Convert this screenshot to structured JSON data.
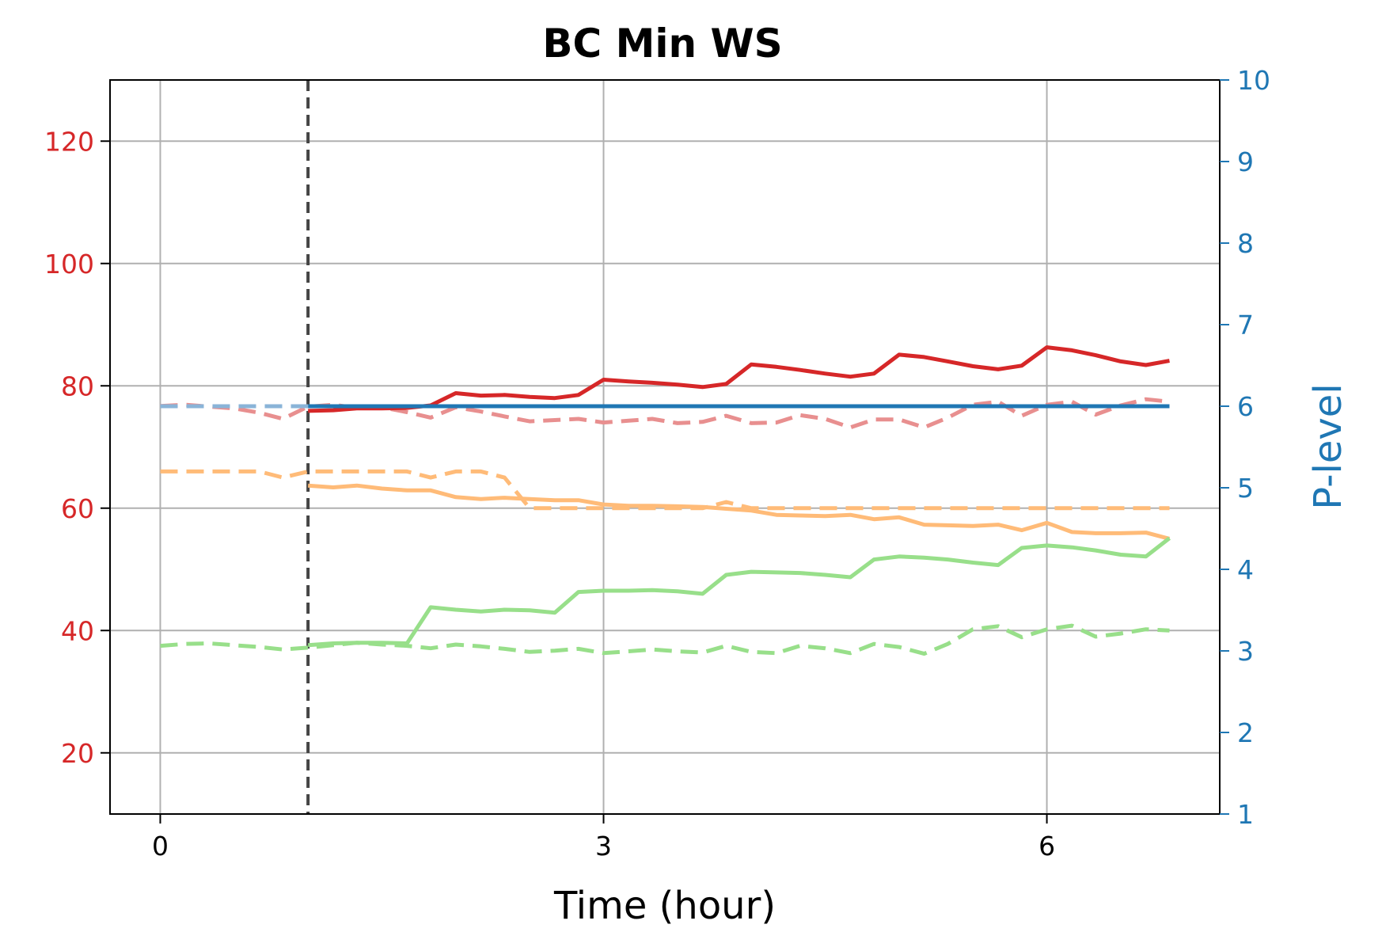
{
  "chart_data": {
    "type": "line",
    "title": "BC Min WS",
    "xlabel": "Time (hour)",
    "ylabel": "",
    "y2label": "P-level",
    "xlim": [
      -0.34,
      7.17
    ],
    "ylim": [
      10,
      130
    ],
    "y2lim": [
      1,
      10
    ],
    "xticks": [
      0,
      3,
      6
    ],
    "yticks": [
      20,
      40,
      60,
      80,
      100,
      120
    ],
    "y2ticks": [
      1,
      2,
      3,
      4,
      5,
      6,
      7,
      8,
      9,
      10
    ],
    "grid": true,
    "vline_x": 1.0,
    "colors": {
      "red": "#d62728",
      "orange": "#ffbb78",
      "green": "#98df8a",
      "blue": "#1f77b4",
      "vline": "#444444",
      "grid": "#b0b0b0",
      "left_tick": "#d62728",
      "right_tick": "#1f77b4"
    },
    "series": [
      {
        "axis": "left",
        "style": "dashed",
        "color": "#e88f8f",
        "x": [
          0,
          0.17,
          0.33,
          0.5,
          0.67,
          0.83,
          1.0,
          1.17,
          1.33,
          1.5,
          1.67,
          1.83,
          2.0,
          2.17,
          2.33,
          2.5,
          2.67,
          2.83,
          3.0,
          3.17,
          3.33,
          3.5,
          3.67,
          3.83,
          4.0,
          4.17,
          4.33,
          4.5,
          4.67,
          4.83,
          5.0,
          5.17,
          5.33,
          5.5,
          5.67,
          5.83,
          6.0,
          6.17,
          6.33,
          6.5,
          6.67,
          6.83
        ],
        "y": [
          76.7,
          76.9,
          76.6,
          76.3,
          75.6,
          74.6,
          76.6,
          76.9,
          76.4,
          76.5,
          75.7,
          74.8,
          76.5,
          75.8,
          75.0,
          74.2,
          74.4,
          74.6,
          74.0,
          74.3,
          74.6,
          73.9,
          74.1,
          75.1,
          73.9,
          74.0,
          75.2,
          74.6,
          73.2,
          74.5,
          74.5,
          73.2,
          74.8,
          76.9,
          77.4,
          75.1,
          76.9,
          77.4,
          75.3,
          76.8,
          77.8,
          77.4
        ]
      },
      {
        "axis": "left",
        "style": "solid",
        "color": "#d62728",
        "x": [
          1.0,
          1.17,
          1.33,
          1.5,
          1.67,
          1.83,
          2.0,
          2.17,
          2.33,
          2.5,
          2.67,
          2.83,
          3.0,
          3.17,
          3.33,
          3.5,
          3.67,
          3.83,
          4.0,
          4.17,
          4.33,
          4.5,
          4.67,
          4.83,
          5.0,
          5.17,
          5.33,
          5.5,
          5.67,
          5.83,
          6.0,
          6.17,
          6.33,
          6.5,
          6.67,
          6.83
        ],
        "y": [
          75.9,
          76.0,
          76.3,
          76.3,
          76.4,
          76.8,
          78.8,
          78.4,
          78.5,
          78.2,
          78.0,
          78.5,
          81.0,
          80.7,
          80.5,
          80.2,
          79.8,
          80.3,
          83.5,
          83.1,
          82.6,
          82.0,
          81.5,
          82.0,
          85.1,
          84.7,
          84.0,
          83.2,
          82.7,
          83.3,
          86.3,
          85.8,
          85.0,
          84.0,
          83.4,
          84.1
        ]
      },
      {
        "axis": "left",
        "style": "dashed",
        "color": "#ffbb78",
        "x": [
          0,
          0.17,
          0.33,
          0.5,
          0.67,
          0.83,
          1.0,
          1.17,
          1.33,
          1.5,
          1.67,
          1.83,
          2.0,
          2.17,
          2.33,
          2.5,
          2.67,
          2.83,
          3.0,
          3.17,
          3.33,
          3.5,
          3.67,
          3.83,
          4.0,
          4.17,
          4.33,
          4.5,
          4.67,
          4.83,
          5.0,
          5.17,
          5.33,
          5.5,
          5.67,
          5.83,
          6.0,
          6.17,
          6.33,
          6.5,
          6.67,
          6.83
        ],
        "y": [
          66.0,
          66.0,
          66.0,
          66.0,
          66.0,
          65.0,
          66.0,
          66.0,
          66.0,
          66.0,
          66.0,
          65.0,
          66.0,
          66.0,
          65.0,
          60.0,
          60.0,
          60.0,
          60.0,
          60.0,
          60.0,
          60.0,
          60.0,
          61.0,
          60.0,
          60.0,
          60.0,
          60.0,
          60.0,
          60.0,
          60.0,
          60.0,
          60.0,
          60.0,
          60.0,
          60.0,
          60.0,
          60.0,
          60.0,
          60.0,
          60.0,
          60.0
        ]
      },
      {
        "axis": "left",
        "style": "solid",
        "color": "#ffbb78",
        "x": [
          1.0,
          1.17,
          1.33,
          1.5,
          1.67,
          1.83,
          2.0,
          2.17,
          2.33,
          2.5,
          2.67,
          2.83,
          3.0,
          3.17,
          3.33,
          3.5,
          3.67,
          3.83,
          4.0,
          4.17,
          4.33,
          4.5,
          4.67,
          4.83,
          5.0,
          5.17,
          5.33,
          5.5,
          5.67,
          5.83,
          6.0,
          6.17,
          6.33,
          6.5,
          6.67,
          6.83
        ],
        "y": [
          63.7,
          63.4,
          63.7,
          63.2,
          62.9,
          62.9,
          61.8,
          61.5,
          61.7,
          61.5,
          61.3,
          61.3,
          60.6,
          60.4,
          60.4,
          60.3,
          60.2,
          59.9,
          59.6,
          58.9,
          58.8,
          58.7,
          58.9,
          58.2,
          58.5,
          57.3,
          57.2,
          57.1,
          57.3,
          56.4,
          57.6,
          56.1,
          55.9,
          55.9,
          56.0,
          55.0
        ]
      },
      {
        "axis": "left",
        "style": "dashed",
        "color": "#98df8a",
        "x": [
          0,
          0.17,
          0.33,
          0.5,
          0.67,
          0.83,
          1.0,
          1.17,
          1.33,
          1.5,
          1.67,
          1.83,
          2.0,
          2.17,
          2.33,
          2.5,
          2.67,
          2.83,
          3.0,
          3.17,
          3.33,
          3.5,
          3.67,
          3.83,
          4.0,
          4.17,
          4.33,
          4.5,
          4.67,
          4.83,
          5.0,
          5.17,
          5.33,
          5.5,
          5.67,
          5.83,
          6.0,
          6.17,
          6.33,
          6.5,
          6.67,
          6.83
        ],
        "y": [
          37.5,
          37.8,
          37.9,
          37.6,
          37.3,
          36.9,
          37.2,
          37.6,
          38.0,
          37.7,
          37.5,
          37.1,
          37.7,
          37.4,
          37.0,
          36.5,
          36.7,
          37.0,
          36.3,
          36.6,
          36.9,
          36.6,
          36.4,
          37.5,
          36.5,
          36.3,
          37.5,
          37.1,
          36.3,
          37.8,
          37.3,
          36.2,
          37.8,
          40.2,
          40.7,
          38.9,
          40.2,
          40.8,
          39.0,
          39.5,
          40.2,
          40.0
        ]
      },
      {
        "axis": "left",
        "style": "solid",
        "color": "#98df8a",
        "x": [
          1.0,
          1.17,
          1.33,
          1.5,
          1.67,
          1.83,
          2.0,
          2.17,
          2.33,
          2.5,
          2.67,
          2.83,
          3.0,
          3.17,
          3.33,
          3.5,
          3.67,
          3.83,
          4.0,
          4.17,
          4.33,
          4.5,
          4.67,
          4.83,
          5.0,
          5.17,
          5.33,
          5.5,
          5.67,
          5.83,
          6.0,
          6.17,
          6.33,
          6.5,
          6.67,
          6.83
        ],
        "y": [
          37.6,
          37.9,
          38.0,
          38.0,
          37.9,
          43.8,
          43.4,
          43.1,
          43.4,
          43.3,
          42.9,
          46.3,
          46.5,
          46.5,
          46.6,
          46.4,
          46.0,
          49.1,
          49.6,
          49.5,
          49.4,
          49.1,
          48.7,
          51.6,
          52.1,
          51.9,
          51.6,
          51.1,
          50.7,
          53.5,
          53.9,
          53.6,
          53.1,
          52.4,
          52.1,
          55.1
        ]
      },
      {
        "axis": "right",
        "style": "dashed",
        "color": "#8ab4d8",
        "x": [
          0,
          0.83,
          1.0
        ],
        "y": [
          6,
          6,
          6
        ]
      },
      {
        "axis": "right",
        "style": "solid",
        "color": "#1f77b4",
        "x": [
          1.0,
          6.83
        ],
        "y": [
          6,
          6
        ]
      }
    ]
  }
}
